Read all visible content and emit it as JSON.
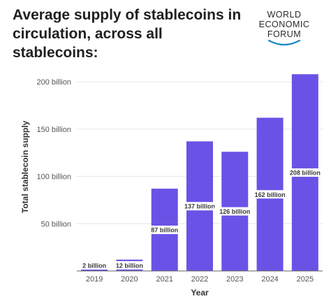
{
  "header": {
    "title": "Average supply of stablecoins in circulation, across all stablecoins:",
    "logo_lines": [
      "WORLD",
      "ECONOMIC",
      "FORUM"
    ]
  },
  "colors": {
    "bar": "#6a52e6",
    "label_bg": "#ffffff",
    "grid": "#e6e6e6",
    "axis": "#666666"
  },
  "chart_data": {
    "type": "bar",
    "title": "Average supply of stablecoins in circulation, across all stablecoins:",
    "xlabel": "Year",
    "ylabel": "Total stablecoin supply",
    "categories": [
      "2019",
      "2020",
      "2021",
      "2022",
      "2023",
      "2024",
      "2025"
    ],
    "values": [
      2,
      12,
      87,
      137,
      126,
      162,
      208
    ],
    "data_labels": [
      "2 billion",
      "12 billion",
      "87 billion",
      "137 billion",
      "126 billion",
      "162 billion",
      "208 billion"
    ],
    "yticks": [
      50,
      100,
      150,
      200
    ],
    "ytick_labels": [
      "50 billion",
      "100 billion",
      "150 billion",
      "200 billion"
    ],
    "ylim": [
      0,
      220
    ],
    "grid": true,
    "legend": "none"
  }
}
